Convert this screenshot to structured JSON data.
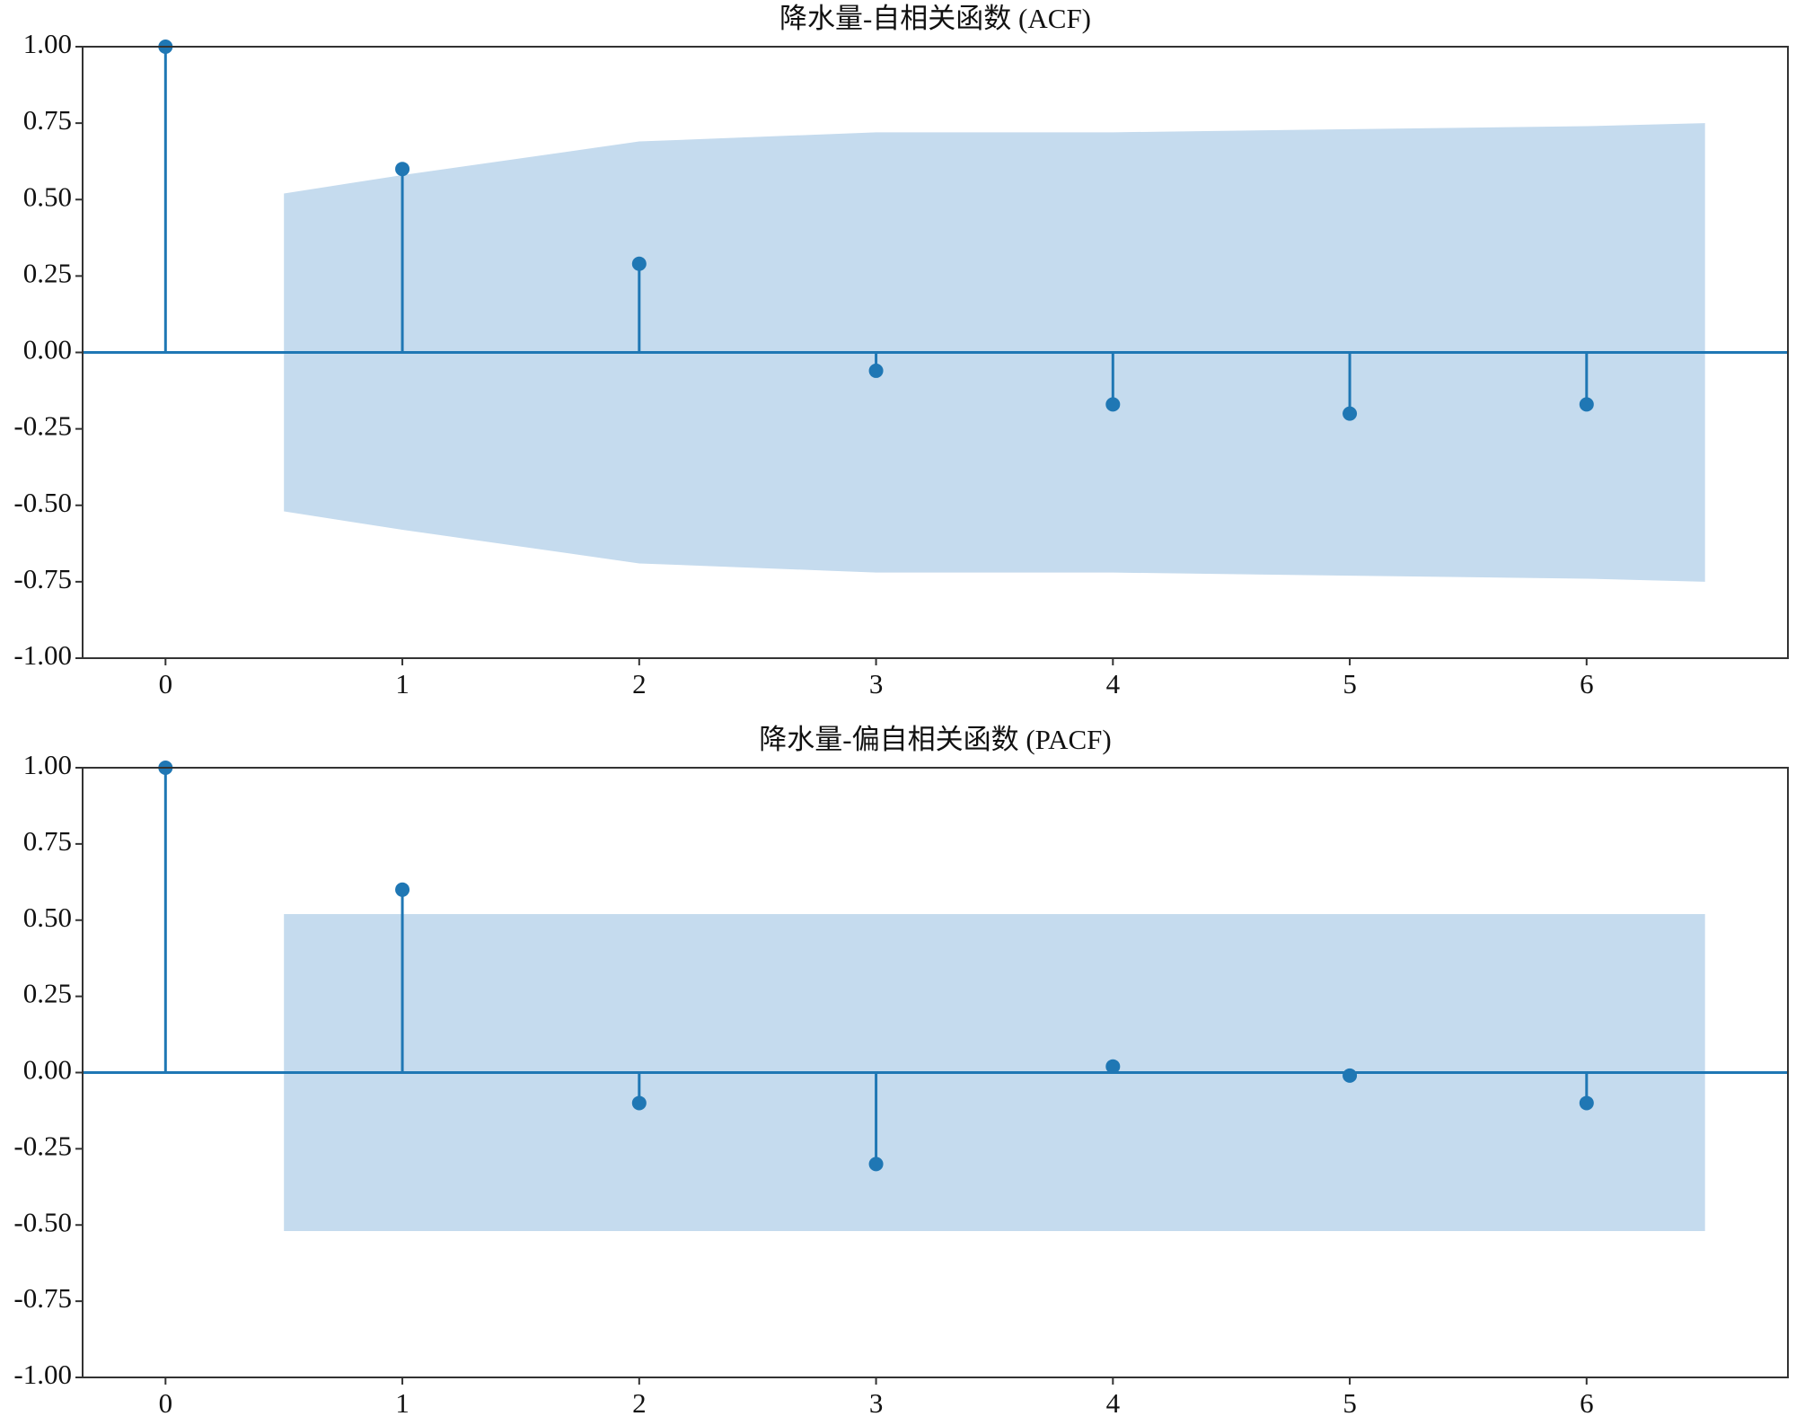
{
  "chart_data": [
    {
      "type": "stem",
      "title": "降水量-自相关函数 (ACF)",
      "x": [
        0,
        1,
        2,
        3,
        4,
        5,
        6
      ],
      "values": [
        1.0,
        0.6,
        0.29,
        -0.06,
        -0.17,
        -0.2,
        -0.17
      ],
      "color": "#1f77b4",
      "confidence_band": {
        "x": [
          0.5,
          1,
          2,
          3,
          4,
          5,
          6,
          6.5
        ],
        "upper": [
          0.52,
          0.58,
          0.69,
          0.72,
          0.72,
          0.73,
          0.74,
          0.75
        ],
        "lower": [
          -0.52,
          -0.58,
          -0.69,
          -0.72,
          -0.72,
          -0.73,
          -0.74,
          -0.75
        ],
        "color": "#c5dbee"
      },
      "xlim": [
        -0.35,
        6.85
      ],
      "xticks": [
        0,
        1,
        2,
        3,
        4,
        5,
        6
      ],
      "ylim": [
        -1,
        1
      ],
      "yticks": [
        {
          "value": -1,
          "label": "-1.00"
        },
        {
          "value": -0.75,
          "label": "-0.75"
        },
        {
          "value": -0.5,
          "label": "-0.50"
        },
        {
          "value": -0.25,
          "label": "-0.25"
        },
        {
          "value": 0,
          "label": "0.00"
        },
        {
          "value": 0.25,
          "label": "0.25"
        },
        {
          "value": 0.5,
          "label": "0.50"
        },
        {
          "value": 0.75,
          "label": "0.75"
        },
        {
          "value": 1,
          "label": "1.00"
        }
      ]
    },
    {
      "type": "stem",
      "title": "降水量-偏自相关函数 (PACF)",
      "x": [
        0,
        1,
        2,
        3,
        4,
        5,
        6
      ],
      "values": [
        1.0,
        0.6,
        -0.1,
        -0.3,
        0.02,
        -0.01,
        -0.1
      ],
      "color": "#1f77b4",
      "confidence_band": {
        "x": [
          0.5,
          6.5
        ],
        "upper": [
          0.52,
          0.52
        ],
        "lower": [
          -0.52,
          -0.52
        ],
        "color": "#c5dbee"
      },
      "xlim": [
        -0.35,
        6.85
      ],
      "xticks": [
        0,
        1,
        2,
        3,
        4,
        5,
        6
      ],
      "ylim": [
        -1,
        1
      ],
      "yticks": [
        {
          "value": -1,
          "label": "-1.00"
        },
        {
          "value": -0.75,
          "label": "-0.75"
        },
        {
          "value": -0.5,
          "label": "-0.50"
        },
        {
          "value": -0.25,
          "label": "-0.25"
        },
        {
          "value": 0,
          "label": "0.00"
        },
        {
          "value": 0.25,
          "label": "0.25"
        },
        {
          "value": 0.5,
          "label": "0.50"
        },
        {
          "value": 0.75,
          "label": "0.75"
        },
        {
          "value": 1,
          "label": "1.00"
        }
      ]
    }
  ]
}
